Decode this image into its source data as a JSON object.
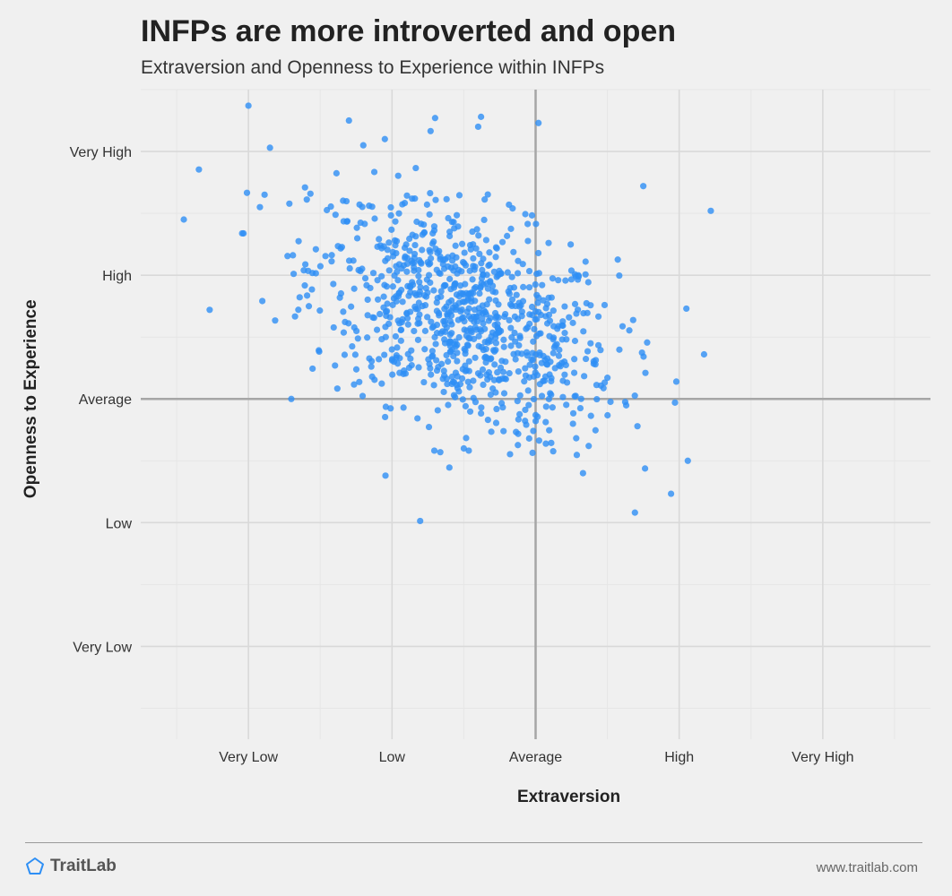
{
  "header": {
    "title": "INFPs are more introverted and open",
    "subtitle": "Extraversion and Openness to Experience within INFPs"
  },
  "footer": {
    "brand_name": "TraitLab",
    "brand_icon": "pentagon-logo-icon",
    "website": "www.traitlab.com"
  },
  "colors": {
    "background": "#f0f0f0",
    "point": "#2e8ff5",
    "grid_major": "#d9d9d9",
    "grid_minor": "#e6e6e6",
    "reference_line": "#a6a6a6"
  },
  "chart_data": {
    "type": "scatter",
    "title": "INFPs are more introverted and open",
    "subtitle": "Extraversion and Openness to Experience within INFPs",
    "xlabel": "Extraversion",
    "ylabel": "Openness to Experience",
    "x_ticks": [
      {
        "value": -2,
        "label": "Very Low"
      },
      {
        "value": -1,
        "label": "Low"
      },
      {
        "value": 0,
        "label": "Average"
      },
      {
        "value": 1,
        "label": "High"
      },
      {
        "value": 2,
        "label": "Very High"
      }
    ],
    "y_ticks": [
      {
        "value": -2,
        "label": "Very Low"
      },
      {
        "value": -1,
        "label": "Low"
      },
      {
        "value": 0,
        "label": "Average"
      },
      {
        "value": 1,
        "label": "High"
      },
      {
        "value": 2,
        "label": "Very High"
      }
    ],
    "xlim": [
      -2.75,
      2.75
    ],
    "ylim": [
      -2.75,
      2.5
    ],
    "reference_lines": {
      "x": 0,
      "y": 0
    },
    "grid": true,
    "points_cluster": {
      "count": 900,
      "x_mean": -0.5,
      "x_sd": 0.53,
      "y_mean": 0.65,
      "y_sd": 0.48,
      "correlation": -0.42
    },
    "outliers": [
      [
        -2.0,
        2.37
      ],
      [
        -2.45,
        1.45
      ],
      [
        -2.27,
        0.72
      ],
      [
        -1.2,
        2.05
      ],
      [
        -1.3,
        2.25
      ],
      [
        -1.05,
        2.1
      ],
      [
        -0.4,
        2.2
      ],
      [
        -0.38,
        2.28
      ],
      [
        0.02,
        2.23
      ],
      [
        -0.7,
        2.27
      ],
      [
        0.75,
        1.72
      ],
      [
        1.05,
        0.73
      ],
      [
        1.06,
        -0.5
      ],
      [
        0.33,
        -0.6
      ],
      [
        -0.5,
        -0.4
      ],
      [
        -0.92,
        -0.07
      ],
      [
        0.98,
        0.14
      ],
      [
        1.22,
        1.52
      ],
      [
        -1.85,
        2.03
      ],
      [
        -1.92,
        1.55
      ]
    ]
  }
}
